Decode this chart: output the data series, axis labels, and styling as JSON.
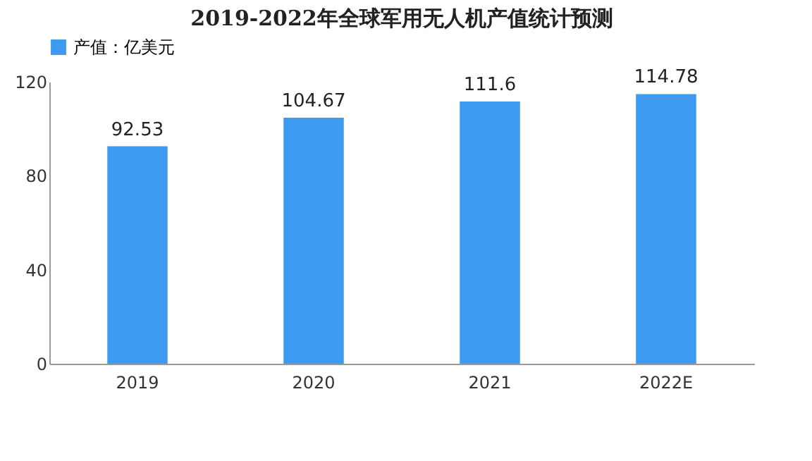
{
  "chart_data": {
    "type": "bar",
    "title": "2019-2022年全球军用无人机产值统计预测",
    "categories": [
      "2019",
      "2020",
      "2021",
      "2022E"
    ],
    "series": [
      {
        "name": "产值：亿美元",
        "color": "#3c9af0",
        "values": [
          92.53,
          104.67,
          111.6,
          114.78
        ]
      }
    ],
    "ylim": [
      0,
      120
    ],
    "yticks": [
      0,
      40,
      80,
      120
    ],
    "grid": false,
    "legend": "top",
    "data_labels": true
  }
}
